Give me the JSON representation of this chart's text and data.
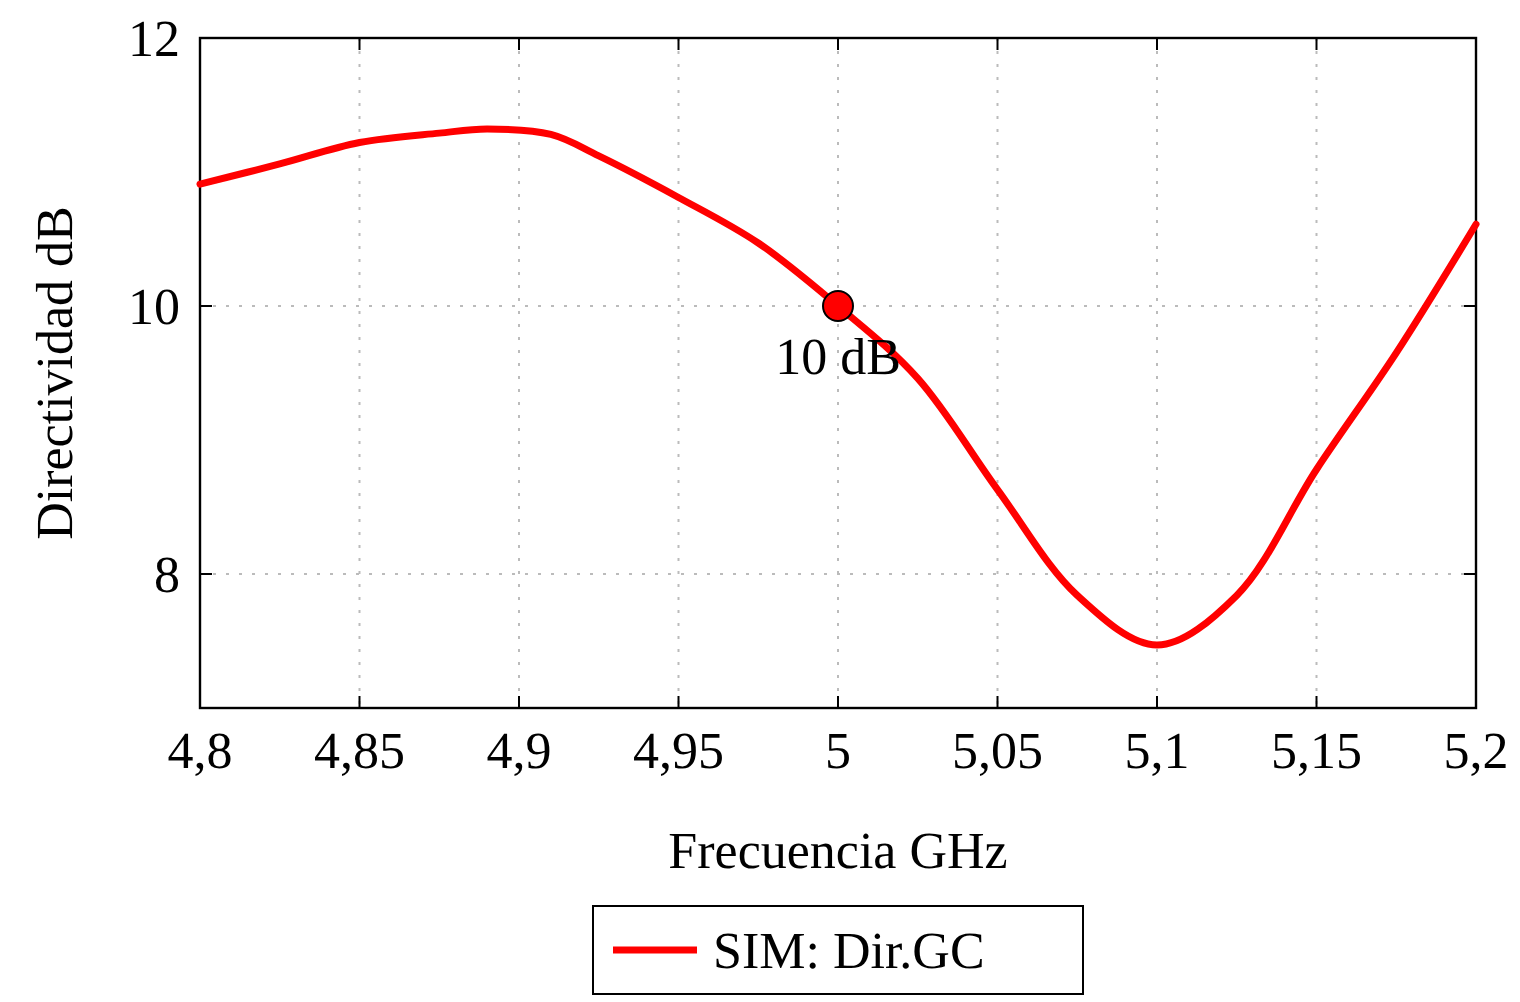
{
  "chart_data": {
    "type": "line",
    "xlabel": "Frecuencia GHz",
    "ylabel": "Directividad dB",
    "xlim": [
      4.8,
      5.2
    ],
    "ylim": [
      7,
      12
    ],
    "xticks": [
      {
        "value": 4.8,
        "label": "4,8"
      },
      {
        "value": 4.85,
        "label": "4,85"
      },
      {
        "value": 4.9,
        "label": "4,9"
      },
      {
        "value": 4.95,
        "label": "4,95"
      },
      5,
      {
        "value": 5.05,
        "label": "5,05"
      },
      {
        "value": 5.1,
        "label": "5,1"
      },
      {
        "value": 5.15,
        "label": "5,15"
      },
      {
        "value": 5.2,
        "label": "5,2"
      }
    ],
    "yticks": [
      8,
      10,
      12
    ],
    "grid": true,
    "legend": "bottom",
    "series": [
      {
        "name": "SIM: Dir.GC",
        "color": "#ff0000",
        "marker": "none",
        "x": [
          4.8,
          4.825,
          4.85,
          4.875,
          4.89,
          4.91,
          4.925,
          4.95,
          4.975,
          5.0,
          5.025,
          5.05,
          5.075,
          5.1,
          5.125,
          5.15,
          5.175,
          5.2
        ],
        "values": [
          10.91,
          11.06,
          11.22,
          11.29,
          11.32,
          11.28,
          11.12,
          10.81,
          10.47,
          10.0,
          9.46,
          8.63,
          7.84,
          7.47,
          7.84,
          8.78,
          9.65,
          10.61
        ]
      },
      {
        "type": "scatter",
        "color": "#ff0000",
        "marker": "circle",
        "x": [
          5.0
        ],
        "values": [
          10.0
        ]
      }
    ],
    "annotations": [
      {
        "text": "10 dB",
        "x": 5.0,
        "y": 10.0
      }
    ]
  }
}
